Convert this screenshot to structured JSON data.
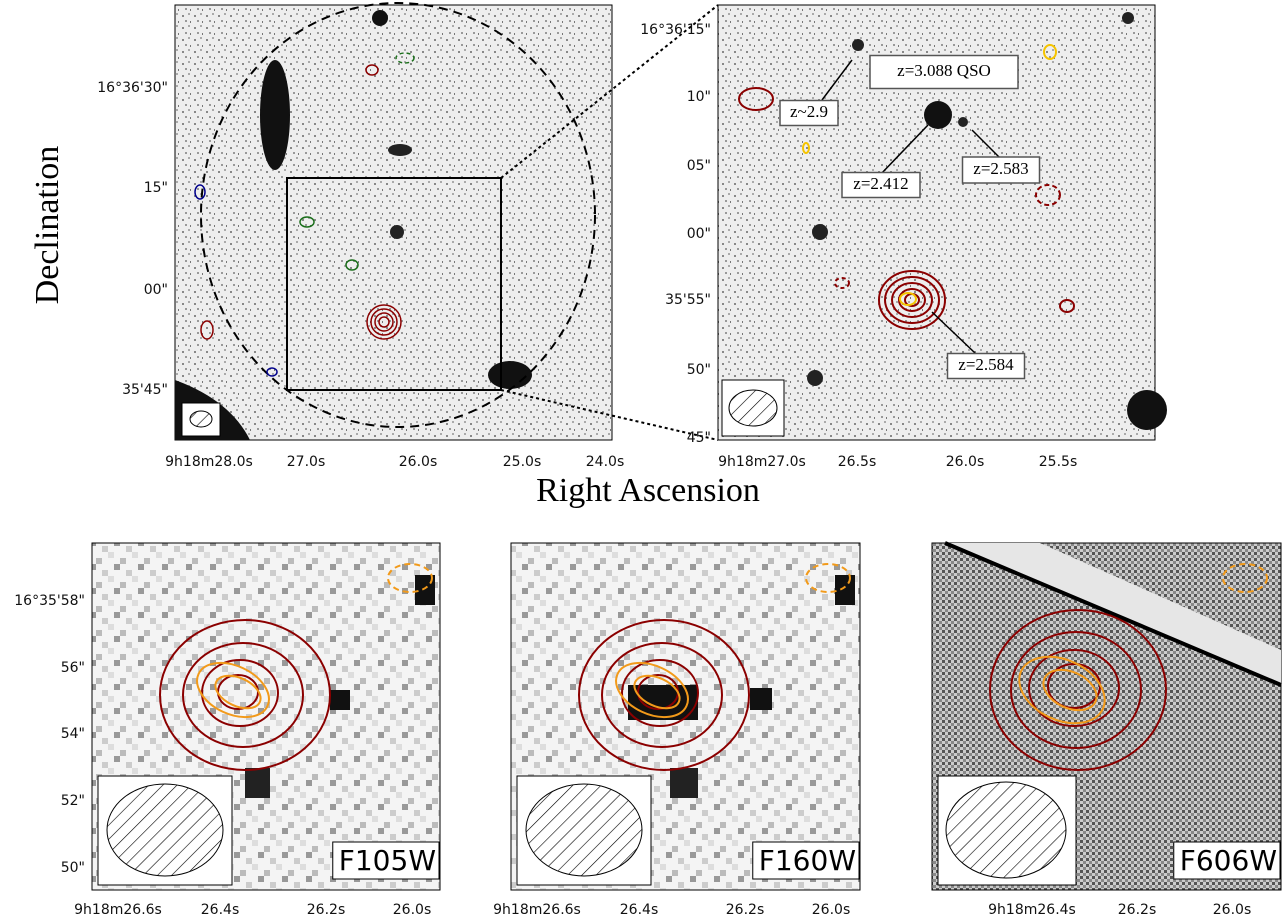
{
  "axis_labels": {
    "y": "Declination",
    "x": "Right Ascension"
  },
  "panels": [
    {
      "yticks": [
        "16°36'30\"",
        "15\"",
        "00\"",
        "35'45\""
      ],
      "xticks": [
        "9h18m28.0s",
        "27.0s",
        "26.0s",
        "25.0s",
        "24.0s"
      ]
    },
    {
      "yticks": [
        "16°36'15\"",
        "10\"",
        "05\"",
        "00\"",
        "35'55\"",
        "50\"",
        "45\""
      ],
      "xticks": [
        "9h18m27.0s",
        "26.5s",
        "26.0s",
        "25.5s"
      ],
      "annotations": [
        "z=3.088 QSO",
        "z~2.9",
        "z=2.412",
        "z=2.583",
        "z=2.584"
      ]
    },
    {
      "label": "F105W",
      "yticks": [
        "16°35'58\"",
        "56\"",
        "54\"",
        "52\"",
        "50\""
      ],
      "xticks": [
        "9h18m26.6s",
        "26.4s",
        "26.2s",
        "26.0s"
      ]
    },
    {
      "label": "F160W",
      "xticks": [
        "9h18m26.6s",
        "26.4s",
        "26.2s",
        "26.0s"
      ]
    },
    {
      "label": "F606W",
      "xticks": [
        "9h18m26.4s",
        "26.2s",
        "26.0s"
      ]
    }
  ]
}
